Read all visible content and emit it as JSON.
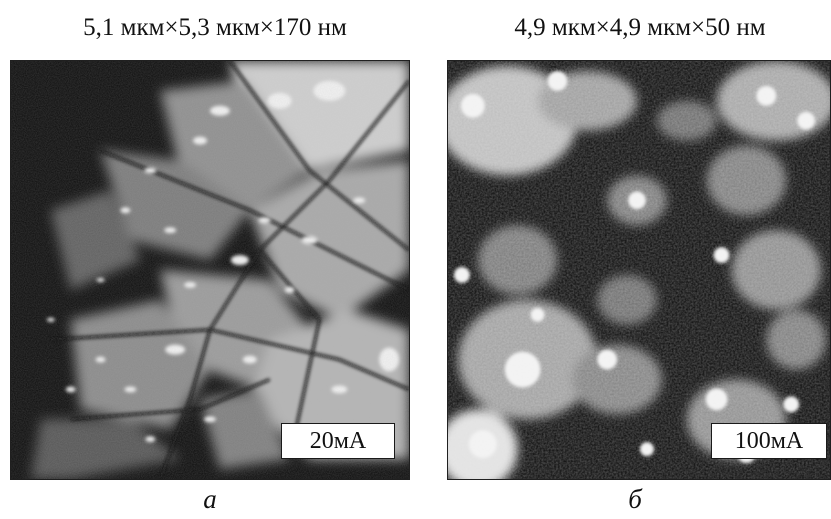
{
  "panels": [
    {
      "title": "5,1 мкм×5,3 мкм×170 нм",
      "current_label": "20мА",
      "letter": "a"
    },
    {
      "title": "4,9 мкм×4,9 мкм×50 нм",
      "current_label": "100мА",
      "letter": "б"
    }
  ]
}
